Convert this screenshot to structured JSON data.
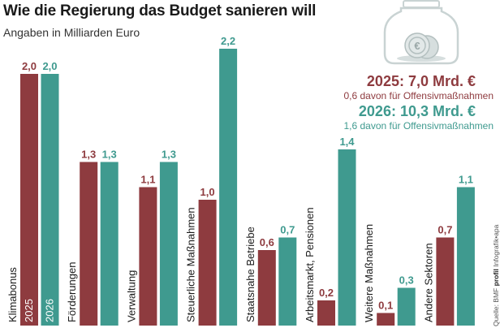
{
  "title": "Wie die Regierung das Budget sanieren will",
  "subtitle": "Angaben in Milliarden Euro",
  "legend": {
    "y2025_title": "2025: 7,0 Mrd. €",
    "y2025_note": "0,6 davon für Offensivmaßnahmen",
    "y2026_title": "2026: 10,3 Mrd. €",
    "y2026_note": "1,6 davon für Offensivmaßnahmen"
  },
  "icon": "euro-coin-jar-icon",
  "credit": {
    "source": "Quelle: BMF",
    "brand": "profil",
    "suffix": "Infografik•apa"
  },
  "colors": {
    "y2025": "#8e3b3f",
    "y2026": "#3f9a8f",
    "text": "#1a1a1a",
    "jar": "#c9d3d3"
  },
  "chart_data": {
    "type": "bar",
    "categories": [
      "Klimabonus",
      "Förderungen",
      "Verwaltung",
      "Steuerliche Maßnahmen",
      "Staatsnahe Betriebe",
      "Arbeitsmarkt, Pensionen",
      "Weitere Maßnahmen",
      "Andere Sektoren"
    ],
    "series": [
      {
        "name": "2025",
        "values": [
          2.0,
          1.3,
          1.1,
          1.0,
          0.6,
          0.2,
          0.1,
          0.7
        ],
        "labels": [
          "2,0",
          "1,3",
          "1,1",
          "1,0",
          "0,6",
          "0,2",
          "0,1",
          "0,7"
        ]
      },
      {
        "name": "2026",
        "values": [
          2.0,
          1.3,
          1.3,
          2.2,
          0.7,
          1.4,
          0.3,
          1.1
        ],
        "labels": [
          "2,0",
          "1,3",
          "1,3",
          "2,2",
          "0,7",
          "1,4",
          "0,3",
          "1,1"
        ]
      }
    ],
    "ylim": [
      0,
      2.2
    ],
    "grid": false,
    "series_labels_inside_first_group": true
  }
}
